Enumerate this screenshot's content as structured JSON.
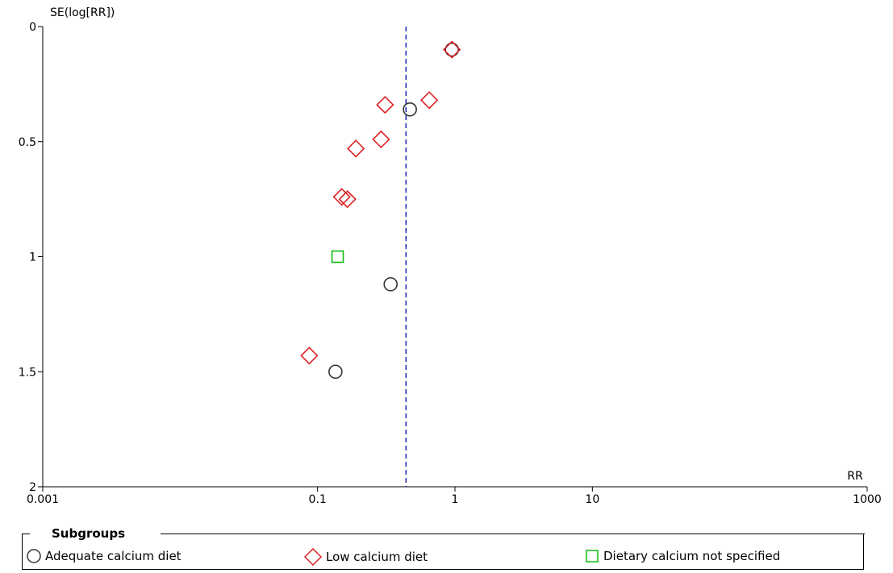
{
  "chart_data": {
    "type": "scatter",
    "title": "",
    "xlabel": "RR",
    "ylabel": "SE(log[RR])",
    "x_scale": "log",
    "xlim": [
      0.001,
      1000
    ],
    "ylim": [
      0,
      2
    ],
    "y_inverted": true,
    "x_ticks": [
      "0.001",
      "0.1",
      "1",
      "10",
      "1000"
    ],
    "x_tick_values": [
      0.001,
      0.1,
      1,
      10,
      1000
    ],
    "y_ticks": [
      "0",
      "0.5",
      "1",
      "1.5",
      "2"
    ],
    "y_tick_values": [
      0,
      0.5,
      1,
      1.5,
      2
    ],
    "reference_line": {
      "x": 0.44,
      "style": "dashed",
      "color": "#0000aa"
    },
    "legend_title": "Subgroups",
    "legend_placement": "bottom",
    "series": [
      {
        "name": "Adequate calcium diet",
        "marker": "circle",
        "color": "#333333",
        "points": [
          {
            "x": 0.95,
            "y": 0.1
          },
          {
            "x": 0.47,
            "y": 0.36
          },
          {
            "x": 0.34,
            "y": 1.12
          },
          {
            "x": 0.135,
            "y": 1.5
          }
        ]
      },
      {
        "name": "Low calcium diet",
        "marker": "diamond",
        "color": "#dd2222",
        "points": [
          {
            "x": 0.95,
            "y": 0.1
          },
          {
            "x": 0.31,
            "y": 0.34
          },
          {
            "x": 0.65,
            "y": 0.32
          },
          {
            "x": 0.29,
            "y": 0.49
          },
          {
            "x": 0.19,
            "y": 0.53
          },
          {
            "x": 0.15,
            "y": 0.74
          },
          {
            "x": 0.165,
            "y": 0.75
          },
          {
            "x": 0.087,
            "y": 1.43
          }
        ]
      },
      {
        "name": "Dietary calcium not specified",
        "marker": "square",
        "color": "#11bb11",
        "points": [
          {
            "x": 0.14,
            "y": 1.0
          }
        ]
      }
    ]
  }
}
